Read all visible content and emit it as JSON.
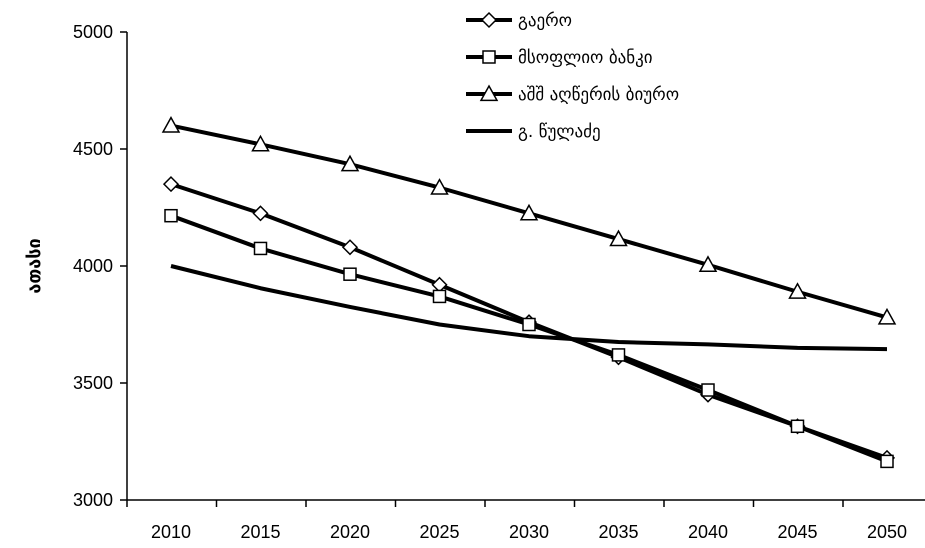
{
  "chart_data": {
    "type": "line",
    "title": "",
    "xlabel": "",
    "ylabel": "ათასი",
    "x": [
      2010,
      2015,
      2020,
      2025,
      2030,
      2035,
      2040,
      2045,
      2050
    ],
    "ylim": [
      3000,
      5000
    ],
    "yticks": [
      3000,
      3500,
      4000,
      4500,
      5000
    ],
    "grid": false,
    "legend_position": "top-right",
    "series": [
      {
        "name": "გაერო",
        "marker": "diamond",
        "color": "#000000",
        "values": [
          4350,
          4225,
          4080,
          3920,
          3760,
          3610,
          3450,
          3315,
          3180
        ]
      },
      {
        "name": "მსოფლიო ბანკი",
        "marker": "square",
        "color": "#000000",
        "values": [
          4215,
          4075,
          3965,
          3870,
          3750,
          3620,
          3470,
          3315,
          3165
        ]
      },
      {
        "name": "აშშ აღწერის ბიურო",
        "marker": "triangle",
        "color": "#000000",
        "values": [
          4600,
          4520,
          4435,
          4335,
          4225,
          4115,
          4005,
          3890,
          3780
        ]
      },
      {
        "name": "გ. წულაძე",
        "marker": "none",
        "color": "#000000",
        "values": [
          4000,
          3905,
          3825,
          3750,
          3700,
          3675,
          3665,
          3650,
          3645
        ]
      }
    ]
  }
}
